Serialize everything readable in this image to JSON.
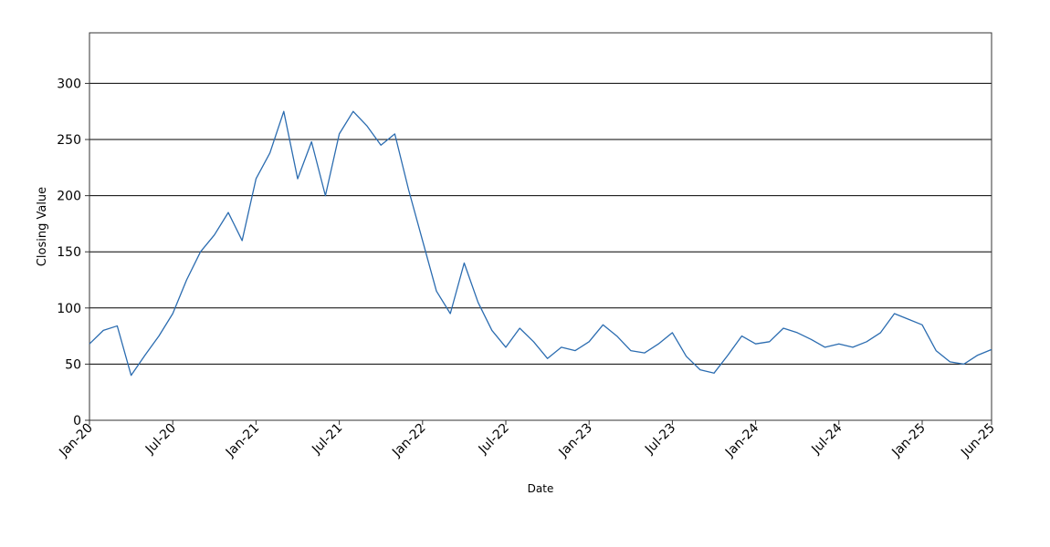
{
  "chart_data": {
    "type": "line",
    "title": "",
    "xlabel": "Date",
    "ylabel": "Closing Value",
    "ylim": [
      0,
      345
    ],
    "xlim": [
      "2020-01",
      "2025-06"
    ],
    "grid": "horizontal",
    "y_ticks": [
      0,
      50,
      100,
      150,
      200,
      250,
      300
    ],
    "x_ticks": [
      "Jan-20",
      "Jul-20",
      "Jan-21",
      "Jul-21",
      "Jan-22",
      "Jul-22",
      "Jan-23",
      "Jul-23",
      "Jan-24",
      "Jul-24",
      "Jan-25",
      "Jun-25"
    ],
    "x_tick_dates": [
      "2020-01",
      "2020-07",
      "2021-01",
      "2021-07",
      "2022-01",
      "2022-07",
      "2023-01",
      "2023-07",
      "2024-01",
      "2024-07",
      "2025-01",
      "2025-06"
    ],
    "line_color": "#2b6cb0",
    "series": [
      {
        "x": [
          "2020-01",
          "2020-02",
          "2020-03",
          "2020-04",
          "2020-05",
          "2020-06",
          "2020-07",
          "2020-08",
          "2020-09",
          "2020-10",
          "2020-11",
          "2020-12",
          "2021-01",
          "2021-02",
          "2021-03",
          "2021-04",
          "2021-05",
          "2021-06",
          "2021-07",
          "2021-08",
          "2021-09",
          "2021-10",
          "2021-11",
          "2021-12",
          "2022-01",
          "2022-02",
          "2022-03",
          "2022-04",
          "2022-05",
          "2022-06",
          "2022-07",
          "2022-08",
          "2022-09",
          "2022-10",
          "2022-11",
          "2022-12",
          "2023-01",
          "2023-02",
          "2023-03",
          "2023-04",
          "2023-05",
          "2023-06",
          "2023-07",
          "2023-08",
          "2023-09",
          "2023-10",
          "2023-11",
          "2023-12",
          "2024-01",
          "2024-02",
          "2024-03",
          "2024-04",
          "2024-05",
          "2024-06",
          "2024-07",
          "2024-08",
          "2024-09",
          "2024-10",
          "2024-11",
          "2024-12",
          "2025-01",
          "2025-02",
          "2025-03",
          "2025-04",
          "2025-05",
          "2025-06"
        ],
        "values": [
          68,
          80,
          84,
          40,
          58,
          75,
          95,
          125,
          150,
          165,
          185,
          160,
          215,
          238,
          275,
          215,
          248,
          200,
          255,
          275,
          262,
          245,
          255,
          205,
          160,
          115,
          95,
          140,
          105,
          80,
          65,
          82,
          70,
          55,
          65,
          62,
          70,
          85,
          75,
          62,
          60,
          68,
          78,
          57,
          45,
          42,
          58,
          75,
          68,
          70,
          82,
          78,
          72,
          65,
          68,
          65,
          70,
          78,
          95,
          90,
          85,
          62,
          52,
          50,
          58,
          63
        ]
      }
    ]
  }
}
